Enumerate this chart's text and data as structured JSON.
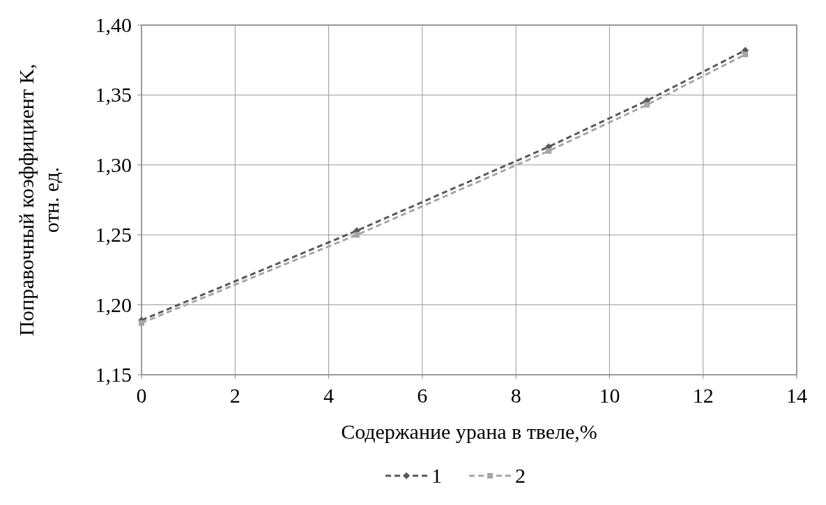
{
  "chart_data": {
    "type": "line",
    "xlabel": "Содержание урана в твеле,%",
    "ylabel": "Поправочный коэффициент K, отн. ед.",
    "xlim": [
      0,
      14
    ],
    "xticks": [
      0,
      2,
      4,
      6,
      8,
      10,
      12,
      14
    ],
    "ylim": [
      1.15,
      1.4
    ],
    "yticks": [
      {
        "value": 1.15,
        "label": "1,15"
      },
      {
        "value": 1.2,
        "label": "1,20"
      },
      {
        "value": 1.25,
        "label": "1,25"
      },
      {
        "value": 1.3,
        "label": "1,30"
      },
      {
        "value": 1.35,
        "label": "1,35"
      },
      {
        "value": 1.4,
        "label": "1,40"
      }
    ],
    "grid": true,
    "legend": "bottom",
    "line_style": "dashed",
    "x": [
      0,
      4.6,
      8.7,
      10.8,
      12.9
    ],
    "series": [
      {
        "name": "1",
        "color": "#595959",
        "marker": "diamond",
        "values": [
          1.189,
          1.253,
          1.313,
          1.346,
          1.382
        ]
      },
      {
        "name": "2",
        "color": "#a6a6a6",
        "marker": "square",
        "values": [
          1.187,
          1.25,
          1.31,
          1.343,
          1.379
        ]
      }
    ]
  }
}
